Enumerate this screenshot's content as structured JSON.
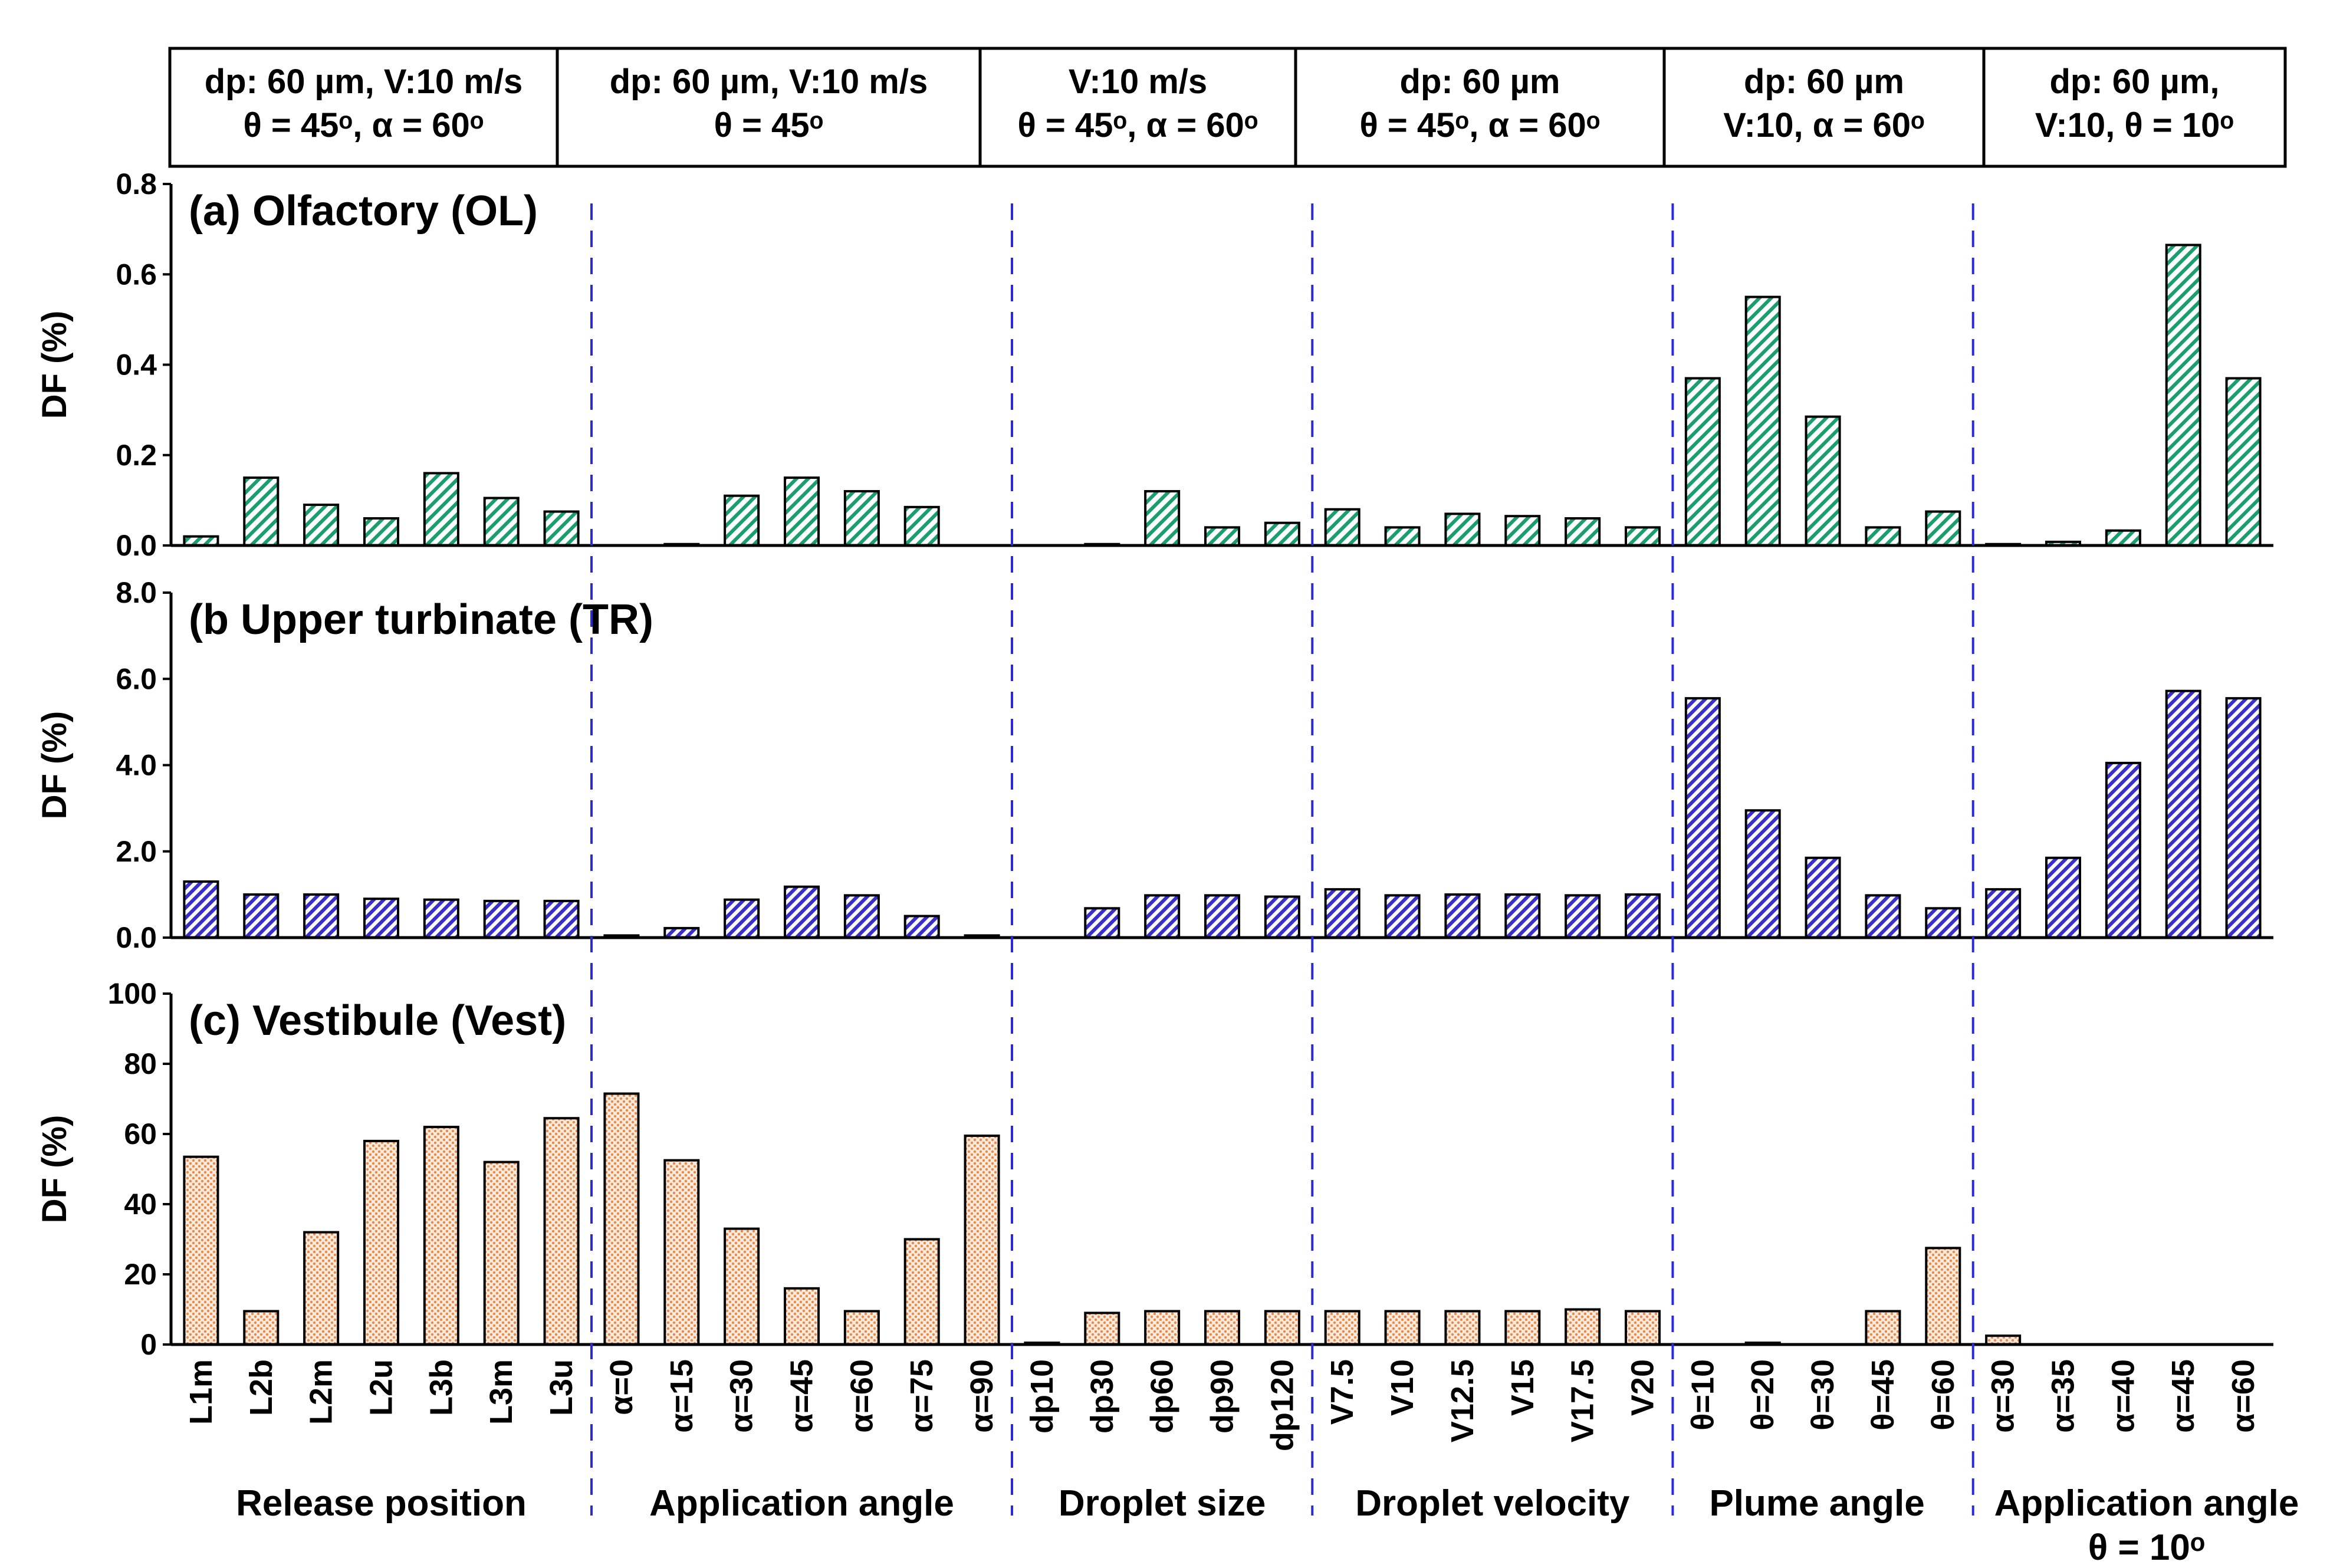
{
  "colors": {
    "ol_fill": "#1a9e6e",
    "tr_fill": "#3b2fc9",
    "vest_fill": "#e88a4a",
    "separator": "#2a2ad8"
  },
  "conditions": [
    {
      "line1": "dp: 60 µm, V:10 m/s",
      "line2": "θ = 45ᵒ, α = 60ᵒ"
    },
    {
      "line1": "dp: 60 µm, V:10 m/s",
      "line2": "θ = 45ᵒ"
    },
    {
      "line1": "V:10 m/s",
      "line2": "θ = 45ᵒ, α = 60ᵒ"
    },
    {
      "line1": "dp: 60 µm",
      "line2": "θ = 45ᵒ, α = 60ᵒ"
    },
    {
      "line1": "dp: 60 µm",
      "line2": "V:10, α = 60ᵒ"
    },
    {
      "line1": "dp: 60 µm,",
      "line2": "V:10, θ = 10ᵒ"
    }
  ],
  "groups": [
    {
      "label": "Release position",
      "label2": ""
    },
    {
      "label": "Application angle",
      "label2": ""
    },
    {
      "label": "Droplet size",
      "label2": ""
    },
    {
      "label": "Droplet velocity",
      "label2": ""
    },
    {
      "label": "Plume angle",
      "label2": ""
    },
    {
      "label": "Application angle",
      "label2": "θ = 10ᵒ"
    }
  ],
  "chart_data": {
    "type": "bar",
    "categories": [
      "L1m",
      "L2b",
      "L2m",
      "L2u",
      "L3b",
      "L3m",
      "L3u",
      "α=0",
      "α=15",
      "α=30",
      "α=45",
      "α=60",
      "α=75",
      "α=90",
      "dp10",
      "dp30",
      "dp60",
      "dp90",
      "dp120",
      "V7.5",
      "V10",
      "V12.5",
      "V15",
      "V17.5",
      "V20",
      "θ=10",
      "θ=20",
      "θ=30",
      "θ=45",
      "θ=60",
      "α=30",
      "α=35",
      "α=40",
      "α=45",
      "α=60"
    ],
    "group_sizes": [
      7,
      7,
      5,
      6,
      5,
      5
    ],
    "ylabel": "DF (%)",
    "panels": [
      {
        "title": "(a) Olfactory (OL)",
        "ylim": [
          0,
          0.8
        ],
        "ticks": [
          "0.0",
          "0.2",
          "0.4",
          "0.6",
          "0.8"
        ],
        "values": [
          0.02,
          0.15,
          0.09,
          0.06,
          0.16,
          0.105,
          0.075,
          0,
          0.003,
          0.11,
          0.15,
          0.12,
          0.085,
          0,
          0,
          0.003,
          0.12,
          0.04,
          0.05,
          0.08,
          0.04,
          0.07,
          0.065,
          0.06,
          0.04,
          0.37,
          0.55,
          0.285,
          0.04,
          0.075,
          0.003,
          0.008,
          0.033,
          0.665,
          0.37
        ]
      },
      {
        "title": "(b Upper turbinate (TR)",
        "ylim": [
          0,
          8.0
        ],
        "ticks": [
          "0.0",
          "2.0",
          "4.0",
          "6.0",
          "8.0"
        ],
        "values": [
          1.3,
          1.0,
          1.0,
          0.9,
          0.88,
          0.85,
          0.85,
          0.05,
          0.22,
          0.88,
          1.18,
          0.98,
          0.5,
          0.05,
          0,
          0.68,
          0.98,
          0.98,
          0.95,
          1.12,
          0.98,
          1.0,
          1.0,
          0.98,
          1.0,
          5.55,
          2.95,
          1.85,
          0.98,
          0.68,
          1.12,
          1.85,
          4.05,
          5.72,
          5.55
        ]
      },
      {
        "title": "(c) Vestibule (Vest)",
        "ylim": [
          0,
          100
        ],
        "ticks": [
          "0",
          "20",
          "40",
          "60",
          "80",
          "100"
        ],
        "values": [
          53.5,
          9.5,
          32,
          58,
          62,
          52,
          64.5,
          71.5,
          52.5,
          33,
          16,
          9.5,
          30,
          59.5,
          0.5,
          9,
          9.5,
          9.5,
          9.5,
          9.5,
          9.5,
          9.5,
          9.5,
          10,
          9.5,
          0,
          0.5,
          0,
          9.5,
          27.5,
          2.5,
          0,
          0,
          0,
          0
        ]
      }
    ]
  }
}
